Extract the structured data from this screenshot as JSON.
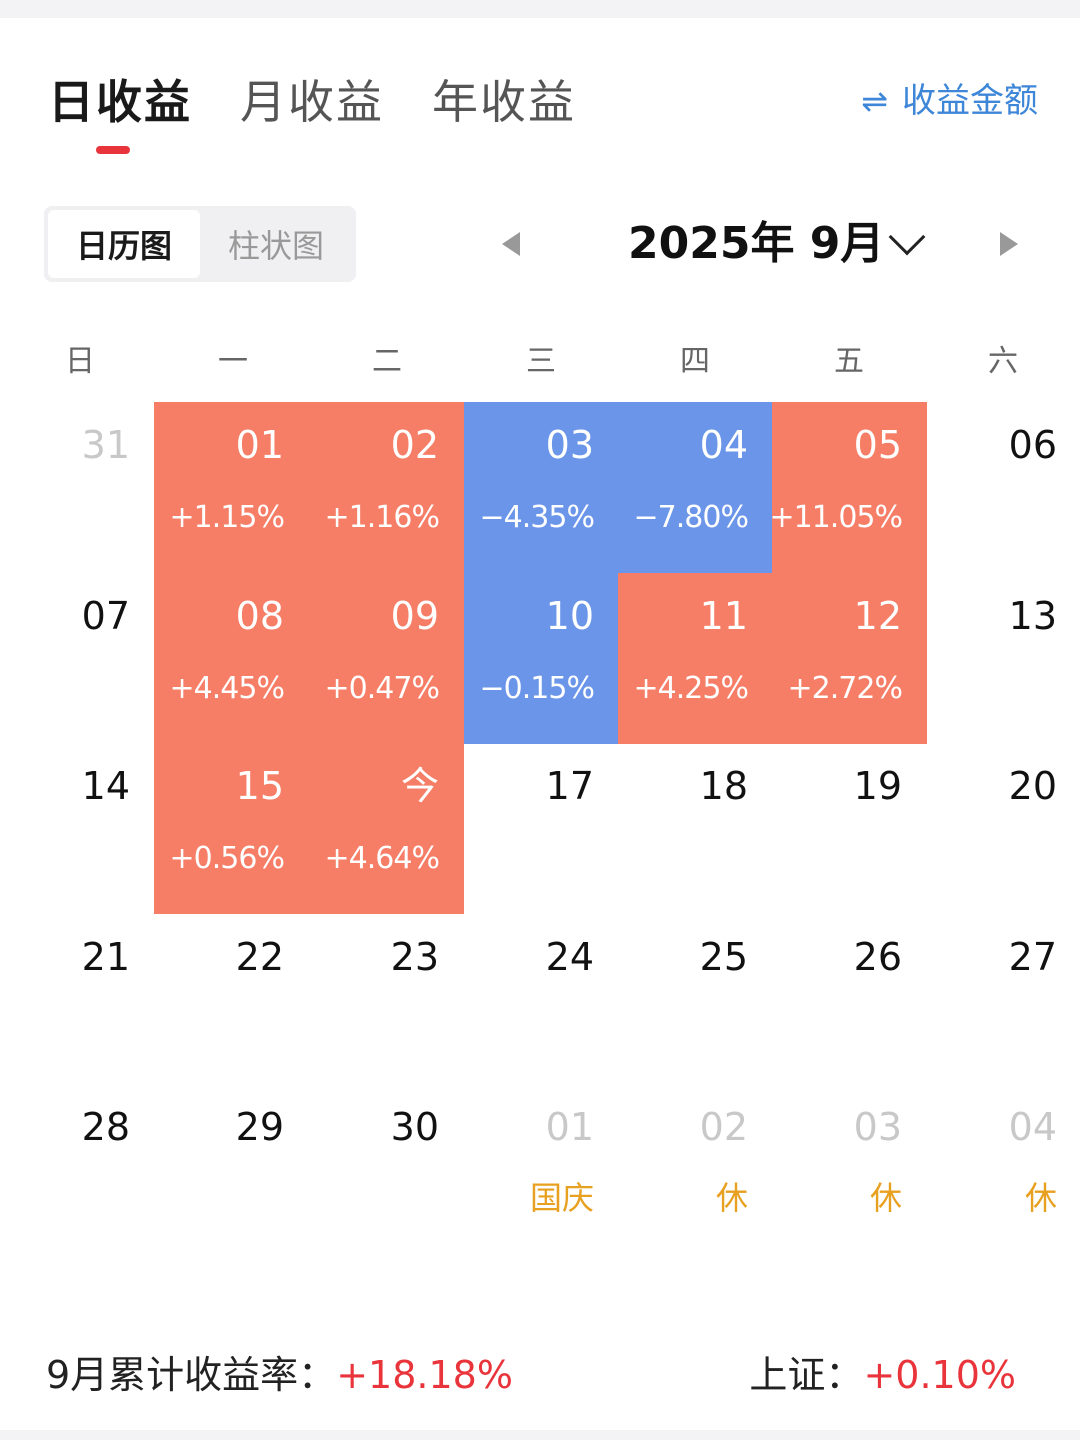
{
  "tabs": [
    {
      "label": "日收益",
      "active": true
    },
    {
      "label": "月收益",
      "active": false
    },
    {
      "label": "年收益",
      "active": false
    }
  ],
  "amount_toggle": {
    "icon": "swap-icon",
    "label": "收益金额"
  },
  "view_toggle": [
    {
      "label": "日历图",
      "active": true
    },
    {
      "label": "柱状图",
      "active": false
    }
  ],
  "month_selector": {
    "title": "2025年 9月"
  },
  "weekdays": [
    "日",
    "一",
    "二",
    "三",
    "四",
    "五",
    "六"
  ],
  "colors": {
    "gain": "#f67d66",
    "loss": "#6a95e8",
    "holiday": "#e8a020",
    "accent": "#e8343a"
  },
  "calendar": [
    [
      {
        "day": "31",
        "dim": true
      },
      {
        "day": "01",
        "pct": "+1.15%",
        "status": "gain"
      },
      {
        "day": "02",
        "pct": "+1.16%",
        "status": "gain"
      },
      {
        "day": "03",
        "pct": "−4.35%",
        "status": "loss"
      },
      {
        "day": "04",
        "pct": "−7.80%",
        "status": "loss"
      },
      {
        "day": "05",
        "pct": "+11.05%",
        "status": "gain"
      },
      {
        "day": "06"
      }
    ],
    [
      {
        "day": "07"
      },
      {
        "day": "08",
        "pct": "+4.45%",
        "status": "gain"
      },
      {
        "day": "09",
        "pct": "+0.47%",
        "status": "gain"
      },
      {
        "day": "10",
        "pct": "−0.15%",
        "status": "loss"
      },
      {
        "day": "11",
        "pct": "+4.25%",
        "status": "gain"
      },
      {
        "day": "12",
        "pct": "+2.72%",
        "status": "gain"
      },
      {
        "day": "13"
      }
    ],
    [
      {
        "day": "14"
      },
      {
        "day": "15",
        "pct": "+0.56%",
        "status": "gain"
      },
      {
        "day": "今",
        "pct": "+4.64%",
        "status": "gain"
      },
      {
        "day": "17"
      },
      {
        "day": "18"
      },
      {
        "day": "19"
      },
      {
        "day": "20"
      }
    ],
    [
      {
        "day": "21"
      },
      {
        "day": "22"
      },
      {
        "day": "23"
      },
      {
        "day": "24"
      },
      {
        "day": "25"
      },
      {
        "day": "26"
      },
      {
        "day": "27"
      }
    ],
    [
      {
        "day": "28"
      },
      {
        "day": "29"
      },
      {
        "day": "30"
      },
      {
        "day": "01",
        "dim": true,
        "holiday": "国庆"
      },
      {
        "day": "02",
        "dim": true,
        "holiday": "休"
      },
      {
        "day": "03",
        "dim": true,
        "holiday": "休"
      },
      {
        "day": "04",
        "dim": true,
        "holiday": "休"
      }
    ]
  ],
  "footer": {
    "cumulative_label": "9月累计收益率：",
    "cumulative_value": "+18.18%",
    "index_label": "上证：",
    "index_value": "+0.10%"
  }
}
